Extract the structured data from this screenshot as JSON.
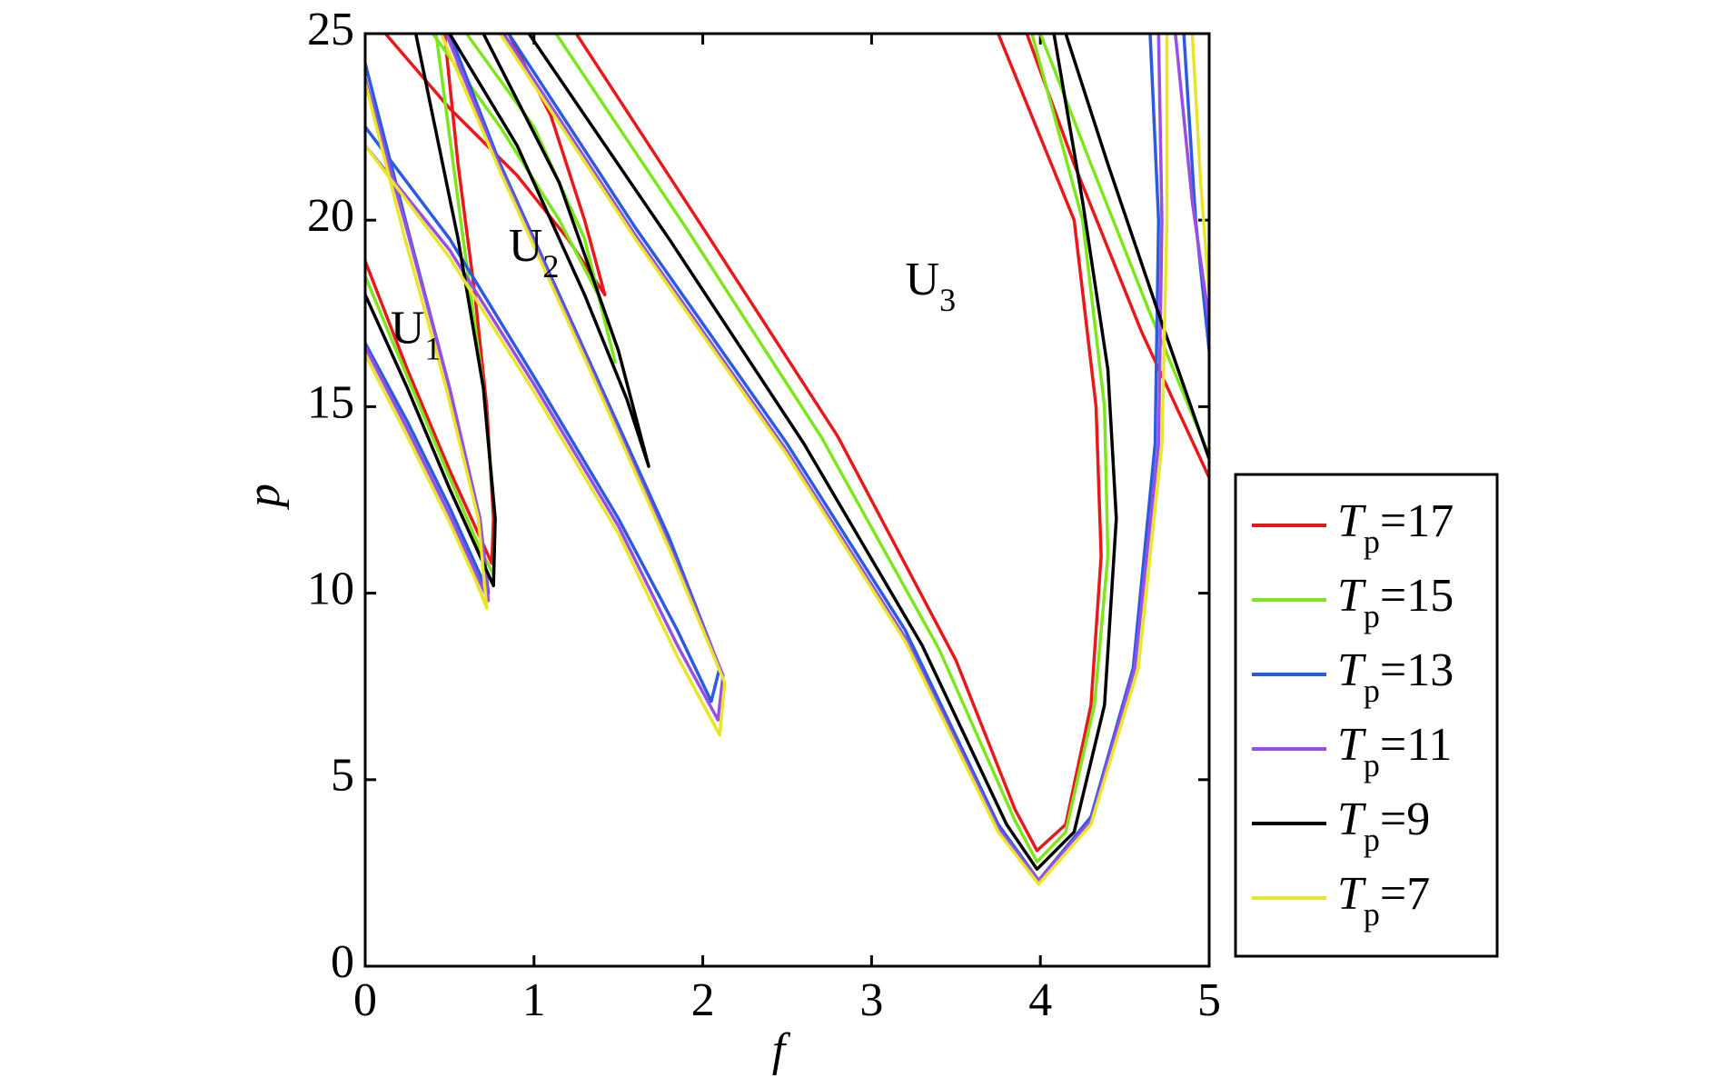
{
  "chart_data": {
    "type": "line",
    "x_label": "f",
    "y_label": "p",
    "xlim": [
      0,
      5
    ],
    "ylim": [
      0,
      25
    ],
    "xticks": [
      0,
      1,
      2,
      3,
      4,
      5
    ],
    "yticks": [
      0,
      5,
      10,
      15,
      20,
      25
    ],
    "legend": "right",
    "annotations": [
      "U1",
      "U2",
      "U3"
    ],
    "series": [
      {
        "name": "Tp=17",
        "color": "#e8191a",
        "x": [
          0,
          0.25,
          0.5,
          0.68,
          0.75,
          0.76,
          0.72,
          0.65,
          0.55,
          0.47,
          null,
          0.12,
          0.5,
          0.9,
          1.2,
          1.42,
          1.3,
          1.1,
          0.85,
          null,
          1.25,
          2,
          2.8,
          3.5,
          3.85,
          3.98,
          4.15,
          4.3,
          4.36,
          4.33,
          4.2,
          3.75,
          null,
          3.92,
          4.2,
          4.6,
          5
        ],
        "values": [
          18.9,
          16,
          13.3,
          11.5,
          10.8,
          12,
          15,
          18,
          21.5,
          25,
          null,
          25,
          23,
          21.2,
          19.5,
          18,
          20,
          22.8,
          25,
          null,
          25,
          19.8,
          14.2,
          8.2,
          4.2,
          3.1,
          3.8,
          7,
          11,
          15,
          20,
          25,
          null,
          25,
          21.5,
          17,
          13.1
        ]
      },
      {
        "name": "Tp=15",
        "color": "#7de61e",
        "x": [
          0,
          0.25,
          0.5,
          0.68,
          0.76,
          0.77,
          0.7,
          0.58,
          0.42,
          null,
          0.4,
          0.8,
          1.15,
          1.38,
          1.48,
          1.3,
          1.0,
          0.6,
          null,
          1.13,
          1.9,
          2.7,
          3.4,
          3.85,
          3.98,
          4.15,
          4.32,
          4.4,
          4.38,
          4.25,
          3.95,
          null,
          4.0,
          4.3,
          4.65,
          5
        ],
        "values": [
          18.5,
          15.8,
          13.1,
          11.2,
          10.5,
          12,
          15.5,
          19.5,
          25,
          null,
          25,
          22.5,
          20,
          18,
          16.2,
          19.5,
          22.5,
          25,
          null,
          25,
          19.8,
          14.2,
          8.5,
          3.9,
          2.8,
          3.6,
          7,
          11,
          15,
          20,
          25,
          null,
          25,
          21.5,
          17.5,
          13.7
        ]
      },
      {
        "name": "Tp=13",
        "color": "#2b5be0",
        "x": [
          0,
          0.25,
          0.5,
          0.65,
          0.73,
          0.68,
          0.5,
          0.25,
          0,
          null,
          0,
          0.5,
          1.0,
          1.5,
          1.85,
          2.05,
          2.1,
          1.8,
          1.3,
          0.8,
          0.5,
          null,
          0.85,
          1.6,
          2.5,
          3.2,
          3.75,
          3.99,
          4.3,
          4.55,
          4.68,
          4.7,
          4.65,
          null,
          4.85,
          4.92,
          5
        ],
        "values": [
          16.7,
          14.6,
          12.3,
          10.8,
          10,
          12,
          15.5,
          19.8,
          24.2,
          null,
          22.5,
          19.5,
          15.8,
          12,
          9,
          7.1,
          8,
          11.5,
          16.5,
          21.5,
          25,
          null,
          25,
          19.8,
          14,
          9,
          3.8,
          2.3,
          4,
          8,
          14,
          20,
          25,
          null,
          25,
          20,
          16.5
        ]
      },
      {
        "name": "Tp=11",
        "color": "#9a4fe0",
        "x": [
          0,
          0.25,
          0.5,
          0.65,
          0.73,
          0.68,
          0.5,
          0.25,
          0,
          null,
          0,
          0.5,
          1.0,
          1.5,
          1.85,
          2.09,
          2.12,
          1.8,
          1.3,
          0.8,
          0.48,
          null,
          0.82,
          1.6,
          2.5,
          3.2,
          3.75,
          3.99,
          4.3,
          4.56,
          4.7,
          4.72,
          4.7,
          null,
          4.8,
          4.9,
          5
        ],
        "values": [
          16.6,
          14.4,
          12.1,
          10.6,
          9.8,
          12,
          15.5,
          19.7,
          23.8,
          null,
          22,
          19.2,
          15.6,
          11.8,
          8.6,
          6.6,
          7.8,
          11.3,
          16.4,
          21.4,
          25,
          null,
          25,
          19.6,
          13.8,
          8.8,
          3.7,
          2.3,
          3.9,
          8,
          14,
          20,
          25,
          null,
          25,
          20.5,
          17.3
        ]
      },
      {
        "name": "Tp=9",
        "color": "#000000",
        "x": [
          0,
          0.25,
          0.5,
          0.68,
          0.76,
          0.77,
          0.7,
          0.55,
          0.3,
          null,
          0.5,
          0.9,
          1.3,
          1.55,
          1.68,
          1.5,
          1.15,
          0.7,
          null,
          0.97,
          1.8,
          2.6,
          3.3,
          3.8,
          3.98,
          4.2,
          4.38,
          4.45,
          4.4,
          4.25,
          4.08,
          null,
          4.15,
          4.4,
          4.7,
          5
        ],
        "values": [
          18,
          15.5,
          12.8,
          11,
          10.2,
          12,
          15.5,
          19.5,
          25,
          null,
          25,
          22,
          18,
          15.2,
          13.4,
          16.5,
          21,
          25,
          null,
          25,
          19.5,
          14,
          8.6,
          3.8,
          2.6,
          3.6,
          7,
          12,
          16,
          20.5,
          25,
          null,
          25,
          21.5,
          17.5,
          13.6
        ]
      },
      {
        "name": "Tp=7",
        "color": "#e6e62a",
        "x": [
          0,
          0.25,
          0.5,
          0.65,
          0.72,
          0.67,
          0.48,
          0.23,
          0,
          null,
          0,
          0.5,
          1.0,
          1.5,
          1.85,
          2.1,
          2.13,
          1.8,
          1.3,
          0.8,
          0.45,
          null,
          0.8,
          1.6,
          2.5,
          3.2,
          3.75,
          3.99,
          4.3,
          4.58,
          4.72,
          4.75,
          4.75,
          null,
          4.9,
          4.95,
          5
        ],
        "values": [
          16.4,
          14.2,
          11.9,
          10.4,
          9.6,
          12,
          15.5,
          19.6,
          23.7,
          null,
          22,
          19,
          15.4,
          11.6,
          8.3,
          6.2,
          7.6,
          11.2,
          16.3,
          21.3,
          25,
          null,
          25,
          19.5,
          13.7,
          8.7,
          3.6,
          2.2,
          3.8,
          8,
          14,
          20,
          25,
          null,
          25,
          21,
          18
        ]
      }
    ]
  }
}
